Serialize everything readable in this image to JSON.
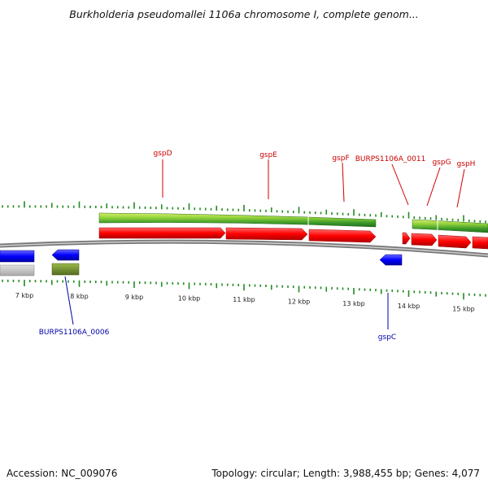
{
  "title": "Burkholderia pseudomallei 1106a chromosome I, complete genom...",
  "footer": {
    "accession": "Accession: NC_009076",
    "summary": "Topology: circular; Length: 3,988,455 bp; Genes: 4,077"
  },
  "colors": {
    "cds_forward": "#ff0000",
    "cds_reverse": "#0000ff",
    "gene_forward": "#66cc22",
    "gene_reverse": "#6b8e23",
    "backbone": "#888888",
    "tick": "#228b22",
    "label_forward": "#cc0000",
    "label_reverse": "#0000aa"
  },
  "scale_labels": [
    {
      "text": "7 kbp",
      "kbp": 7
    },
    {
      "text": "8 kbp",
      "kbp": 8
    },
    {
      "text": "9 kbp",
      "kbp": 9
    },
    {
      "text": "10 kbp",
      "kbp": 10
    },
    {
      "text": "11 kbp",
      "kbp": 11
    },
    {
      "text": "12 kbp",
      "kbp": 12
    },
    {
      "text": "13 kbp",
      "kbp": 13
    },
    {
      "text": "14 kbp",
      "kbp": 14
    },
    {
      "text": "15 kbp",
      "kbp": 15
    }
  ],
  "forward_genes": [
    {
      "label": "gspD"
    },
    {
      "label": "gspE"
    },
    {
      "label": "gspF"
    },
    {
      "label": "BURPS1106A_0011"
    },
    {
      "label": "gspG"
    },
    {
      "label": "gspH"
    }
  ],
  "reverse_genes": [
    {
      "label": "BURPS1106A_0006"
    },
    {
      "label": "gspC"
    }
  ]
}
